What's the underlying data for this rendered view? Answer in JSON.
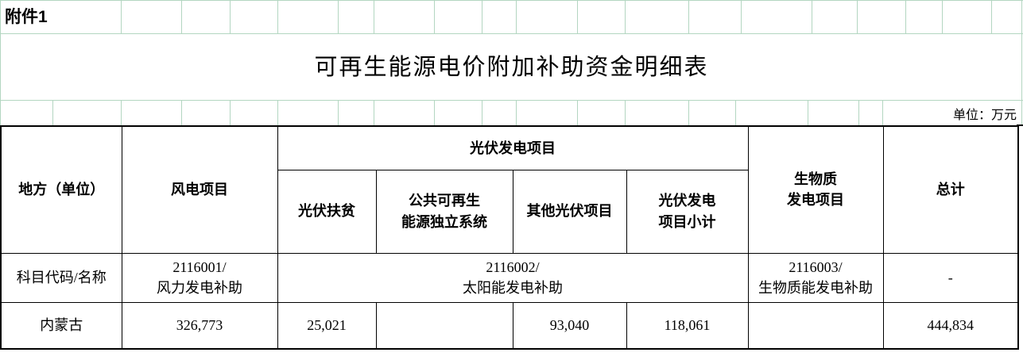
{
  "attachment_label": "附件1",
  "title": "可再生能源电价附加补助资金明细表",
  "unit_note": "单位：万元",
  "table": {
    "group_header": "光伏发电项目",
    "columns": {
      "region": "地方（单位）",
      "wind": "风电项目",
      "pv_poverty": "光伏扶贫",
      "pv_public": "公共可再生\n能源独立系统",
      "pv_other": "其他光伏项目",
      "pv_subtotal": "光伏发电\n项目小计",
      "biomass": "生物质\n发电项目",
      "total": "总计"
    },
    "code_row": {
      "label": "科目代码/名称",
      "wind_code": "2116001/\n风力发电补助",
      "pv_code": "2116002/\n太阳能发电补助",
      "biomass_code": "2116003/\n生物质能发电补助",
      "total_code": "-"
    },
    "data_rows": [
      {
        "region": "内蒙古",
        "wind": "326,773",
        "pv_poverty": "25,021",
        "pv_public": "",
        "pv_other": "93,040",
        "pv_subtotal": "118,061",
        "biomass": "",
        "total": "444,834"
      }
    ]
  },
  "colors": {
    "gridline": "#b3d6c1",
    "table_border": "#000000",
    "background": "#ffffff",
    "text": "#000000"
  }
}
